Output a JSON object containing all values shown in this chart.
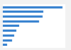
{
  "values": [
    860000,
    590000,
    570000,
    520000,
    240000,
    200000,
    160000,
    130000,
    60000
  ],
  "bar_color": "#2979cc",
  "background_color": "#f2f2f2",
  "plot_background": "#ffffff",
  "grid_color": "#e0e0e0",
  "figsize": [
    1.0,
    0.71
  ],
  "dpi": 100,
  "bar_height": 0.45
}
